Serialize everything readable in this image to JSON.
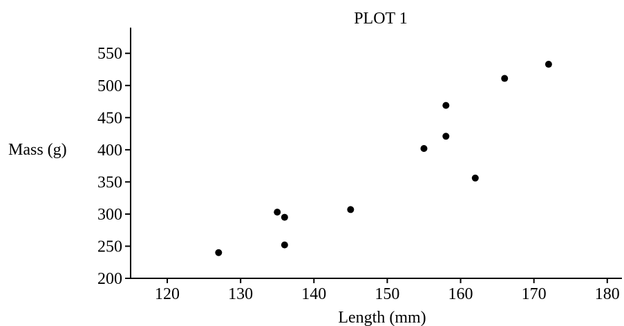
{
  "chart_data": {
    "type": "scatter",
    "title": "PLOT 1",
    "xlabel": "Length (mm)",
    "ylabel": "Mass (g)",
    "xlim": [
      115,
      182
    ],
    "ylim": [
      200,
      590
    ],
    "xticks": [
      120,
      130,
      140,
      150,
      160,
      170,
      180
    ],
    "yticks": [
      200,
      250,
      300,
      350,
      400,
      450,
      500,
      550
    ],
    "grid": false,
    "marker_color": "#000000",
    "points": [
      {
        "x": 127,
        "y": 240
      },
      {
        "x": 135,
        "y": 303
      },
      {
        "x": 136,
        "y": 295
      },
      {
        "x": 136,
        "y": 252
      },
      {
        "x": 145,
        "y": 307
      },
      {
        "x": 155,
        "y": 402
      },
      {
        "x": 158,
        "y": 469
      },
      {
        "x": 158,
        "y": 421
      },
      {
        "x": 162,
        "y": 356
      },
      {
        "x": 166,
        "y": 511
      },
      {
        "x": 172,
        "y": 533
      }
    ]
  }
}
